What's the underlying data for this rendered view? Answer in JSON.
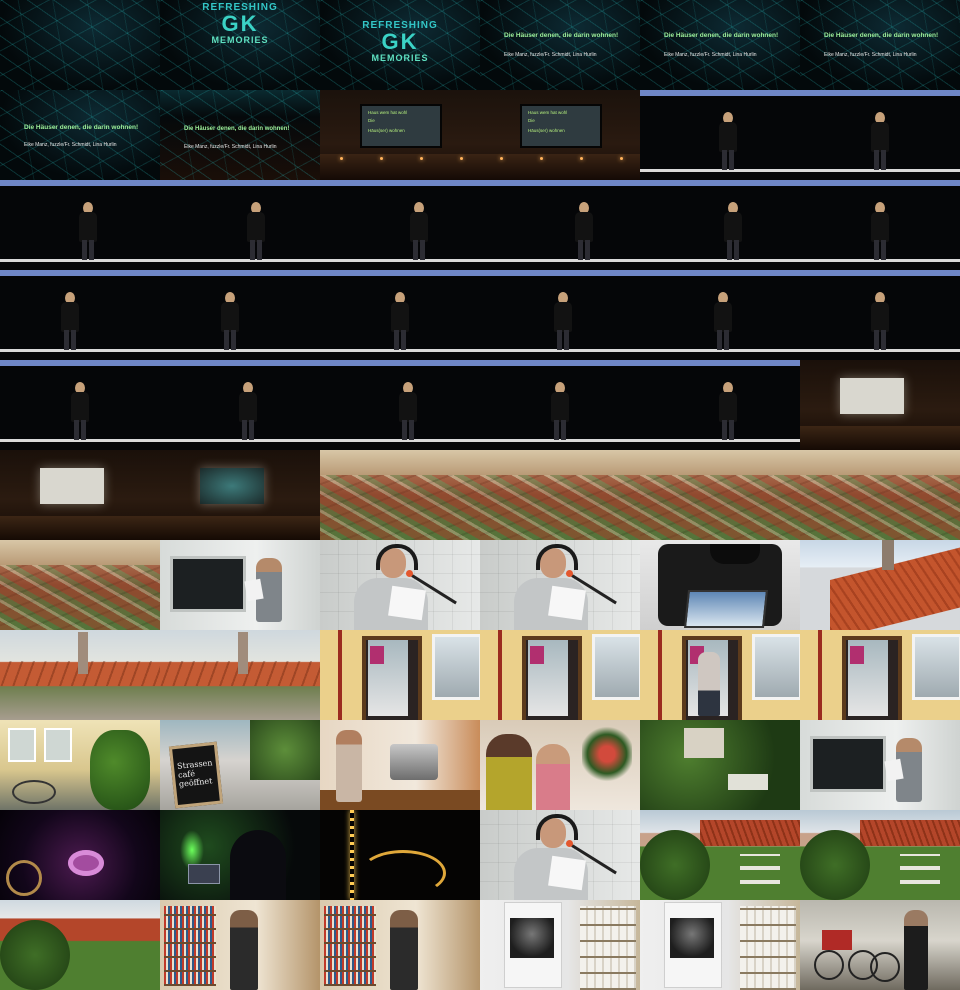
{
  "texts": {
    "logo_top": "REFRESHING",
    "logo_mark": "GK",
    "logo_bottom": "MEMORIES",
    "talk_title": "Die Häuser denen, die darin wohnen!",
    "talk_authors": "Eike Manz, fuzzle/Fr. Schmidt, Lina Hurlin",
    "screen_line_1": "Haus wem hat wohl",
    "screen_line_2": "Die",
    "screen_line_3": "Häus(ser) wohnen",
    "sign_line_1": "Strassen",
    "sign_line_2": "café",
    "sign_line_3": "geöffnet"
  },
  "colors": {
    "background": "#000000",
    "title_accent": "#33c7c7",
    "title_green": "#9df09a",
    "stage_bar": "#6f86c6"
  },
  "rows": [
    {
      "cells": [
        {
          "scene": "title-dark"
        },
        {
          "scene": "title-logo-full"
        },
        {
          "scene": "title-logo-top"
        },
        {
          "scene": "title-text"
        },
        {
          "scene": "title-text"
        },
        {
          "scene": "title-text"
        }
      ]
    },
    {
      "cells": [
        {
          "scene": "title-bottom"
        },
        {
          "scene": "title-bottom-2"
        },
        {
          "scene": "stage-screen-text"
        },
        {
          "scene": "stage-screen-text"
        },
        {
          "scene": "speaker",
          "fx": 0.55
        },
        {
          "scene": "speaker",
          "fx": 0.5
        }
      ]
    },
    {
      "cells": [
        {
          "scene": "speaker",
          "fx": 0.55
        },
        {
          "scene": "speaker",
          "fx": 0.6
        },
        {
          "scene": "speaker",
          "fx": 0.62
        },
        {
          "scene": "speaker",
          "fx": 0.65
        },
        {
          "scene": "speaker",
          "fx": 0.58
        },
        {
          "scene": "speaker",
          "fx": 0.5
        }
      ]
    },
    {
      "cells": [
        {
          "scene": "speaker",
          "fx": 0.44
        },
        {
          "scene": "speaker",
          "fx": 0.44
        },
        {
          "scene": "speaker",
          "fx": 0.5
        },
        {
          "scene": "speaker",
          "fx": 0.52
        },
        {
          "scene": "speaker",
          "fx": 0.52
        },
        {
          "scene": "speaker",
          "fx": 0.5
        }
      ]
    },
    {
      "cells": [
        {
          "scene": "speaker",
          "fx": 0.5
        },
        {
          "scene": "speaker",
          "fx": 0.55
        },
        {
          "scene": "speaker",
          "fx": 0.55
        },
        {
          "scene": "speaker",
          "fx": 0.5
        },
        {
          "scene": "speaker",
          "fx": 0.55
        },
        {
          "scene": "stage-blank-screen"
        }
      ]
    },
    {
      "cells": [
        {
          "scene": "stage-blank-screen"
        },
        {
          "scene": "stage-screen-pattern"
        },
        {
          "scene": "aerial-rooftops"
        },
        {
          "scene": "aerial-rooftops"
        },
        {
          "scene": "aerial-rooftops"
        },
        {
          "scene": "aerial-rooftops"
        }
      ]
    },
    {
      "cells": [
        {
          "scene": "aerial-rooftops"
        },
        {
          "scene": "studio-wide"
        },
        {
          "scene": "studio-closeup"
        },
        {
          "scene": "studio-closeup"
        },
        {
          "scene": "camera-display"
        },
        {
          "scene": "rooftop"
        }
      ]
    },
    {
      "cells": [
        {
          "scene": "street-chimney"
        },
        {
          "scene": "street-chimney"
        },
        {
          "scene": "yellow-house-door"
        },
        {
          "scene": "yellow-house-door"
        },
        {
          "scene": "yellow-house-door-person"
        },
        {
          "scene": "yellow-house-door"
        }
      ]
    },
    {
      "cells": [
        {
          "scene": "house-entrance"
        },
        {
          "scene": "street-sign"
        },
        {
          "scene": "cafe-bar"
        },
        {
          "scene": "cafe-table"
        },
        {
          "scene": "garden"
        },
        {
          "scene": "studio-wide"
        }
      ]
    },
    {
      "cells": [
        {
          "scene": "club-purple"
        },
        {
          "scene": "club-dj"
        },
        {
          "scene": "string-lights"
        },
        {
          "scene": "studio-closeup"
        },
        {
          "scene": "ivy-houses"
        },
        {
          "scene": "ivy-houses"
        }
      ]
    },
    {
      "cells": [
        {
          "scene": "rooftop-trees"
        },
        {
          "scene": "bookshelf-reader"
        },
        {
          "scene": "bookshelf-reader"
        },
        {
          "scene": "exhibit-panel"
        },
        {
          "scene": "exhibit-panel"
        },
        {
          "scene": "bike-workshop"
        }
      ]
    }
  ]
}
